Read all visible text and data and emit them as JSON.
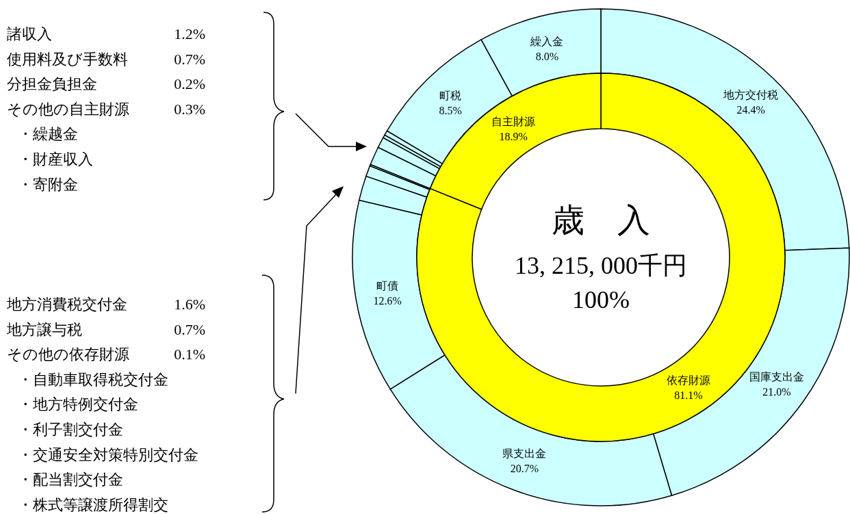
{
  "chart_data": [
    {
      "type": "donut",
      "categories": [
        "地方交付税",
        "国庫支出金",
        "県支出金",
        "町債",
        null,
        null,
        null,
        null,
        null,
        null,
        null,
        "町税",
        "繰入金"
      ],
      "values": [
        24.4,
        21.0,
        20.7,
        12.6,
        1.6,
        0.7,
        0.1,
        1.2,
        0.7,
        0.2,
        0.3,
        8.5,
        8.0
      ],
      "colors": [
        "#ccffff",
        "#ccffff",
        "#ccffff",
        "#ccffff",
        "#ccffff",
        "#ccffff",
        "#ccffff",
        "#ccffff",
        "#ccffff",
        "#ccffff",
        "#ccffff",
        "#ccffff",
        "#ccffff"
      ],
      "value_labels": [
        "24.4%",
        "21.0%",
        "20.7%",
        "12.6%",
        null,
        null,
        null,
        null,
        null,
        null,
        null,
        "8.5%",
        "8.0%"
      ],
      "annotations": [
        "諸収入 1.2%",
        "使用料及び手数料 0.7%",
        "分担金負担金 0.2%",
        "その他の自主財源 0.3%",
        "・繰越金",
        "・財産収入",
        "・寄附金",
        "地方消費税交付金 1.6%",
        "地方譲与税 0.7%",
        "その他の依存財源 0.1%",
        "・自動車取得税交付金",
        "・地方特例交付金",
        "・利子割交付金",
        "・交通安全対策特別交付金",
        "・配当割交付金",
        "・株式等譲渡所得割交"
      ]
    },
    {
      "type": "donut",
      "categories": [
        "依存財源",
        "自主財源"
      ],
      "values": [
        81.1,
        18.9
      ],
      "colors": [
        "#ffff00",
        "#ffff00"
      ],
      "value_labels": [
        "81.1%",
        "18.9%"
      ],
      "annotations": [
        "歳　入",
        "13, 215, 000千円",
        "100%"
      ]
    }
  ]
}
